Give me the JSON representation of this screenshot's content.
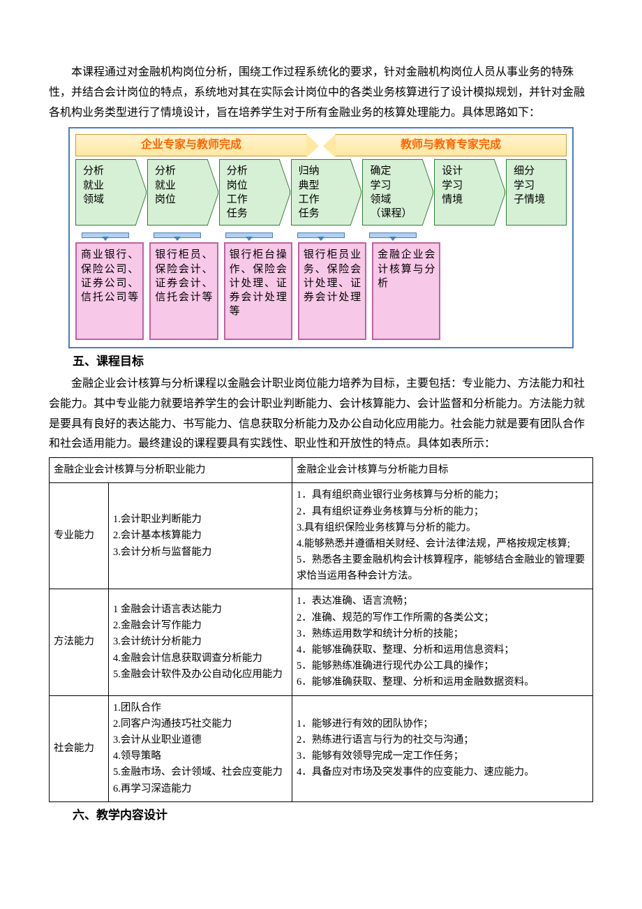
{
  "intro": "本课程通过对金融机构岗位分析，围绕工作过程系统化的要求，针对金融机构岗位人员从事业务的特殊性，并结合会计岗位的特点，系统地对其在实际会计岗位中的各类业务核算进行了设计模拟规划，并针对金融各机构业务类型进行了情境设计，旨在培养学生对于所有金融业务的核算处理能力。具体思路如下：",
  "chart": {
    "border_color": "#4a7ebb",
    "banners": [
      {
        "text": "企业专家与教师完成",
        "text_color": "#ff6600",
        "bg": "#ffe8a0"
      },
      {
        "text": "教师与教育专家完成",
        "text_color": "#ff6600",
        "bg": "#ffe8a0"
      }
    ],
    "steps": [
      {
        "text": "分析\n就业\n领域",
        "bg": "#d6f0d6",
        "border": "#2e7d32"
      },
      {
        "text": "分析\n就业\n岗位",
        "bg": "#d6f0d6",
        "border": "#2e7d32"
      },
      {
        "text": "分析\n岗位\n工作\n任务",
        "bg": "#d6f0d6",
        "border": "#2e7d32"
      },
      {
        "text": "归纳\n典型\n工作\n任务",
        "bg": "#d6f0d6",
        "border": "#2e7d32"
      },
      {
        "text": "确定\n学习\n领域\n（课程）",
        "bg": "#d6f0d6",
        "border": "#2e7d32"
      },
      {
        "text": "设计\n学习\n情境",
        "bg": "#d6f0d6",
        "border": "#2e7d32"
      },
      {
        "text": "细分\n学习\n子情境",
        "bg": "#d6f0d6",
        "border": "#2e7d32"
      }
    ],
    "pinkboxes": [
      {
        "text": "商业银行、保险公司、证券公司、信托公司等",
        "bg": "#f8c8e8",
        "border": "#c060a0"
      },
      {
        "text": "银行柜员、保险会计、证券会计、信托会计等",
        "bg": "#f8c8e8",
        "border": "#c060a0"
      },
      {
        "text": "银行柜台操作、保险会计处理、证券会计处理等",
        "bg": "#f8c8e8",
        "border": "#c060a0"
      },
      {
        "text": "银行柜员业务、保险会计处理、证券会计处理",
        "bg": "#f8c8e8",
        "border": "#c060a0"
      },
      {
        "text": "金融企业会计核算与分析",
        "bg": "#f8c8e8",
        "border": "#c060a0"
      }
    ],
    "arrow_bar_color": "#b0d0f0",
    "arrow_tip_color": "#4a7ebb"
  },
  "h5": "五、课程目标",
  "p5": "金融企业会计核算与分析课程以金融会计职业岗位能力培养为目标，主要包括：专业能力、方法能力和社会能力。其中专业能力就要培养学生的会计职业判断能力、会计核算能力、会计监督和分析能力。方法能力就是要具有良好的表达能力、书写能力、信息获取分析能力及办公自动化应用能力。社会能力就是要有团队合作和社会适用能力。最终建设的课程要具有实践性、职业性和开放性的特点。具体如表所示：",
  "table": {
    "header": [
      "金融企业会计核算与分析职业能力",
      "金融企业会计核算与分析能力目标"
    ],
    "rows": [
      {
        "cat": "专业能力",
        "skills": "1.会计职业判断能力\n2.会计基本核算能力\n3.会计分析与监督能力",
        "goals": "1．具有组织商业银行业务核算与分析的能力；\n2．具有组织证券业务核算与分析的能力；\n3.具有组织保险业务核算与分析的能力。\n4.能够熟悉并遵循相关财经、会计法律法规，严格按规定核算;\n5．熟悉各主要金融机构会计核算程序，能够结合金融业的管理要求恰当运用各种会计方法。"
      },
      {
        "cat": "方法能力",
        "skills": "1 金融会计语言表达能力\n2.金融会计写作能力\n3.会计统计分析能力\n4.金融会计信息获取调查分析能力\n5.金融会计软件及办公自动化应用能力",
        "goals": "1．表达准确、语言流畅；\n2．准确、规范的写作工作所需的各类公文；\n3．熟练运用数学和统计分析的技能；\n4．能够准确获取、整理、分析和运用信息资料；\n5．能够熟练准确进行现代办公工具的操作；\n6．能够准确获取、整理、分析和运用金融数据资料。"
      },
      {
        "cat": "社会能力",
        "skills": "1.团队合作\n2.同客户沟通技巧社交能力\n3.会计从业职业道德\n4.领导策略\n5.金融市场、会计领域、社会应变能力\n6.再学习深造能力",
        "goals": "1．能够进行有效的团队协作；\n2．熟练进行语言与行为的社交与沟通；\n3．能够有效领导完成一定工作任务；\n4．具备应对市场及突发事件的应变能力、速应能力。"
      }
    ]
  },
  "h6": "六、教学内容设计"
}
